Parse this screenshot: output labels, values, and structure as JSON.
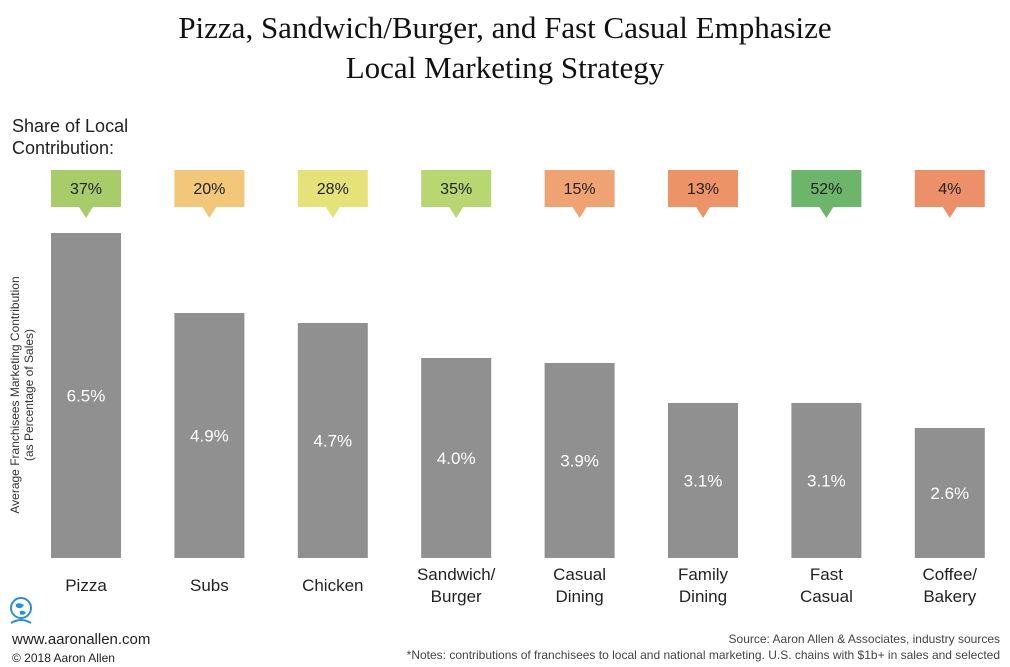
{
  "title": {
    "line1": "Pizza, Sandwich/Burger, and Fast Casual Emphasize",
    "line2": "Local Marketing Strategy"
  },
  "share_label": {
    "line1": "Share of Local",
    "line2": "Contribution:"
  },
  "ylabel": {
    "line1": "Average Franchisees Marketing Contribution",
    "line2": "(as Percentage of Sales)"
  },
  "chart_data": {
    "type": "bar",
    "categories": [
      [
        "Pizza"
      ],
      [
        "Subs"
      ],
      [
        "Chicken"
      ],
      [
        "Sandwich/",
        "Burger"
      ],
      [
        "Casual",
        "Dining"
      ],
      [
        "Family",
        "Dining"
      ],
      [
        "Fast",
        "Casual"
      ],
      [
        "Coffee/",
        "Bakery"
      ]
    ],
    "values": [
      6.5,
      4.9,
      4.7,
      4.0,
      3.9,
      3.1,
      3.1,
      2.6
    ],
    "value_labels": [
      "6.5%",
      "4.9%",
      "4.7%",
      "4.0%",
      "3.9%",
      "3.1%",
      "3.1%",
      "2.6%"
    ],
    "local_share": [
      37,
      20,
      28,
      35,
      15,
      13,
      52,
      4
    ],
    "local_share_labels": [
      "37%",
      "20%",
      "28%",
      "35%",
      "15%",
      "13%",
      "52%",
      "4%"
    ],
    "local_share_colors": [
      "#a9cc6b",
      "#f2c77a",
      "#e6e27a",
      "#b8d672",
      "#f0a372",
      "#ec9468",
      "#6db56a",
      "#ec906a"
    ],
    "bar_color": "#909090",
    "ylabel": "Average Franchisees Marketing Contribution (as Percentage of Sales)",
    "ylim": [
      0,
      6.5
    ],
    "grid": false
  },
  "footer": {
    "website": "www.aaronallen.com",
    "copyright": "© 2018 Aaron Allen",
    "source": "Source: Aaron Allen & Associates, industry sources",
    "notes": "*Notes: contributions of franchisees to local and national marketing. U.S. chains with $1b+ in sales and selected"
  },
  "colors": {
    "bar": "#909090",
    "bar_label": "#ffffff",
    "logo": "#2a8fd0"
  },
  "icons": {
    "logo": "globe-logo-icon"
  }
}
